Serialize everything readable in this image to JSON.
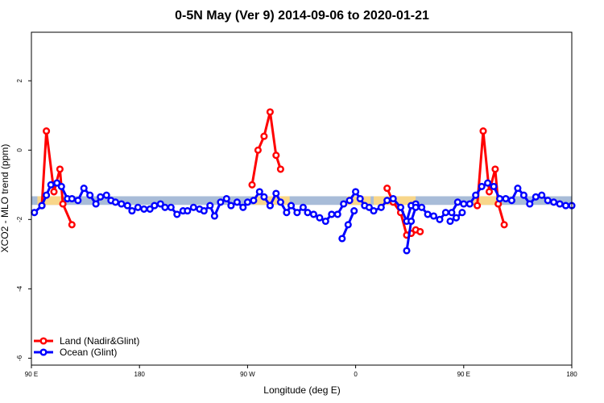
{
  "chart_data": {
    "type": "line",
    "title": "0-5N May (Ver 9)   2014-09-06 to 2020-01-21",
    "xlabel": "Longitude (deg E)",
    "ylabel": "XCO2 - MLO trend (ppm)",
    "xlim": [
      90,
      450
    ],
    "ylim": [
      -6.2,
      3.4
    ],
    "x_ticks": [
      {
        "value": 90,
        "label": "90 E"
      },
      {
        "value": 162,
        "label": "180"
      },
      {
        "value": 234,
        "label": "90 W"
      },
      {
        "value": 306,
        "label": "0"
      },
      {
        "value": 378,
        "label": "90 E"
      },
      {
        "value": 450,
        "label": "180"
      }
    ],
    "y_ticks": [
      {
        "value": 2,
        "label": "2"
      },
      {
        "value": 0,
        "label": "0"
      },
      {
        "value": -2,
        "label": "-2"
      },
      {
        "value": -4,
        "label": "-4"
      },
      {
        "value": -6,
        "label": "-6"
      }
    ],
    "bands": [
      {
        "x_start": 90,
        "x_end": 450,
        "y_low": -1.58,
        "y_high": -1.33,
        "color": "#a8bcd8"
      },
      {
        "x_start": 94,
        "x_end": 112,
        "y_low": -1.58,
        "y_high": -1.33,
        "color": "#f8d68a"
      },
      {
        "x_start": 238,
        "x_end": 262,
        "y_low": -1.58,
        "y_high": -1.33,
        "color": "#f8d68a"
      },
      {
        "x_start": 300,
        "x_end": 316,
        "y_low": -1.58,
        "y_high": -1.33,
        "color": "#f8d68a"
      },
      {
        "x_start": 318,
        "x_end": 346,
        "y_low": -1.58,
        "y_high": -1.33,
        "color": "#f8d68a"
      },
      {
        "x_start": 384,
        "x_end": 402,
        "y_low": -1.58,
        "y_high": -1.33,
        "color": "#f8d68a"
      }
    ],
    "series": [
      {
        "name": "Land (Nadir&Glint)",
        "color": "#ff0000",
        "segments": [
          {
            "x": [
              97,
              100,
              105,
              109,
              111,
              117
            ],
            "y": [
              -1.6,
              0.55,
              -1.2,
              -0.55,
              -1.55,
              -2.15
            ]
          },
          {
            "x": [
              237,
              241,
              245,
              249,
              253,
              256
            ],
            "y": [
              -1.0,
              0.0,
              0.4,
              1.1,
              -0.15,
              -0.55
            ]
          },
          {
            "x": [
              327,
              331,
              336,
              340,
              343,
              346,
              349
            ],
            "y": [
              -1.1,
              -1.5,
              -1.8,
              -2.45,
              -2.4,
              -2.3,
              -2.35
            ]
          },
          {
            "x": [
              387,
              391,
              395,
              399,
              401,
              405
            ],
            "y": [
              -1.6,
              0.55,
              -1.2,
              -0.55,
              -1.55,
              -2.15
            ]
          }
        ]
      },
      {
        "name": "Ocean (Glint)",
        "color": "#0000ff",
        "segments": [
          {
            "x": [
              92,
              97,
              100,
              103,
              107,
              110,
              114,
              117,
              121,
              125,
              129,
              133,
              136,
              140,
              143,
              146,
              150,
              154,
              157,
              161,
              165,
              169,
              172,
              176,
              179,
              183,
              187,
              191,
              194,
              198,
              202,
              205,
              209,
              212,
              216,
              220,
              223,
              227,
              231,
              234,
              238,
              242,
              245,
              249,
              253,
              256,
              260,
              263,
              267,
              271,
              274,
              278,
              282,
              286,
              290,
              294,
              298,
              302,
              306,
              309,
              312,
              315,
              318,
              323,
              327,
              331,
              336,
              340,
              343,
              346,
              350,
              354,
              358,
              362,
              366,
              370,
              374,
              378
            ],
            "y": [
              -1.8,
              -1.6,
              -1.3,
              -1.0,
              -0.95,
              -1.05,
              -1.4,
              -1.4,
              -1.45,
              -1.1,
              -1.3,
              -1.55,
              -1.35,
              -1.3,
              -1.45,
              -1.5,
              -1.55,
              -1.6,
              -1.75,
              -1.65,
              -1.7,
              -1.7,
              -1.6,
              -1.55,
              -1.65,
              -1.65,
              -1.85,
              -1.75,
              -1.75,
              -1.65,
              -1.7,
              -1.75,
              -1.6,
              -1.9,
              -1.5,
              -1.4,
              -1.6,
              -1.5,
              -1.65,
              -1.5,
              -1.45,
              -1.2,
              -1.35,
              -1.6,
              -1.25,
              -1.5,
              -1.8,
              -1.6,
              -1.8,
              -1.65,
              -1.8,
              -1.85,
              -1.95,
              -2.05,
              -1.85,
              -1.85,
              -1.55,
              -1.45,
              -1.2,
              -1.4,
              -1.6,
              -1.65,
              -1.75,
              -1.65,
              -1.45,
              -1.4,
              -1.65,
              -2.05,
              -1.6,
              -1.55,
              -1.65,
              -1.85,
              -1.9,
              -2.0,
              -1.8,
              -1.8,
              -1.5,
              -1.55
            ]
          },
          {
            "x": [
              297,
              301,
              305
            ],
            "y": [
              -2.55,
              -2.15,
              -1.75
            ]
          },
          {
            "x": [
              340,
              343,
              346
            ],
            "y": [
              -2.9,
              -2.05,
              -1.65
            ]
          },
          {
            "x": [
              369,
              373,
              377
            ],
            "y": [
              -2.05,
              -1.95,
              -1.8
            ]
          },
          {
            "x": [
              382,
              386,
              390,
              394,
              398,
              402,
              406,
              410,
              414,
              418,
              422,
              426,
              430,
              434,
              438,
              442,
              446,
              450
            ],
            "y": [
              -1.55,
              -1.3,
              -1.05,
              -0.95,
              -1.05,
              -1.4,
              -1.4,
              -1.45,
              -1.1,
              -1.3,
              -1.55,
              -1.35,
              -1.3,
              -1.45,
              -1.5,
              -1.55,
              -1.6,
              -1.6
            ]
          }
        ]
      }
    ],
    "legend": {
      "position": "bottom-left",
      "entries": [
        {
          "label": "Land (Nadir&Glint)",
          "color": "#ff0000"
        },
        {
          "label": "Ocean (Glint)",
          "color": "#0000ff"
        }
      ]
    }
  }
}
